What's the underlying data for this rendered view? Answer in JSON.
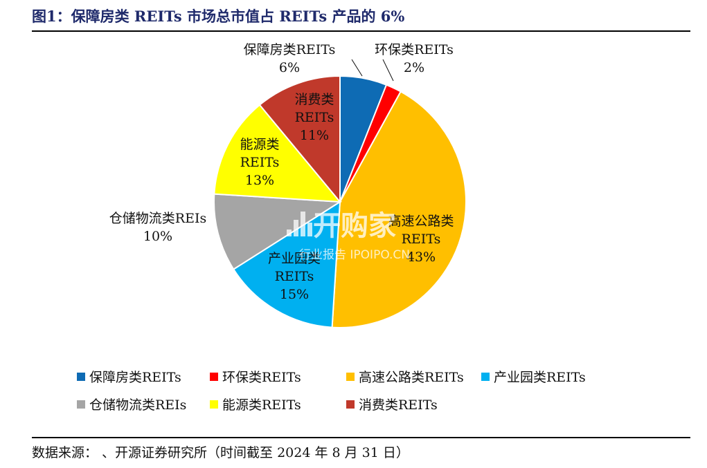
{
  "figure": {
    "title": "图1：保障房类 REITs 市场总市值占 REITs 产品的 6%",
    "source": "数据来源：      、开源证券研究所（时间截至 2024 年 8 月 31 日）"
  },
  "watermark": {
    "main": "开购家",
    "sub": "行业报告 IPOIPO.CN"
  },
  "chart_data": {
    "type": "pie",
    "unit": "%",
    "start_angle_deg": 0,
    "direction": "clockwise",
    "slices": [
      {
        "name": "保障房类REITs",
        "value": 6,
        "color": "#0e6bb4",
        "label_lines": [
          "保障房类REITs",
          "6%"
        ]
      },
      {
        "name": "环保类REITs",
        "value": 2,
        "color": "#ff0000",
        "label_lines": [
          "环保类REITs",
          "2%"
        ]
      },
      {
        "name": "高速公路类REITs",
        "value": 43,
        "color": "#ffbf00",
        "label_lines": [
          "高速公路类",
          "REITs",
          "43%"
        ]
      },
      {
        "name": "产业园类REITs",
        "value": 15,
        "color": "#00b0f0",
        "label_lines": [
          "产业园类",
          "REITs",
          "15%"
        ]
      },
      {
        "name": "仓储物流类REIs",
        "value": 10,
        "color": "#a5a5a5",
        "label_lines": [
          "仓储物流类REIs",
          "10%"
        ]
      },
      {
        "name": "能源类REITs",
        "value": 13,
        "color": "#ffff00",
        "label_lines": [
          "能源类",
          "REITs",
          "13%"
        ]
      },
      {
        "name": "消费类REITs",
        "value": 11,
        "color": "#c0392b",
        "label_lines": [
          "消费类",
          "REITs",
          "11%"
        ]
      }
    ],
    "legend": {
      "placement": "bottom",
      "rows": [
        [
          "保障房类REITs",
          "环保类REITs",
          "高速公路类REITs",
          "产业园类REITs"
        ],
        [
          "仓储物流类REIs",
          "能源类REITs",
          "消费类REITs"
        ]
      ]
    }
  }
}
